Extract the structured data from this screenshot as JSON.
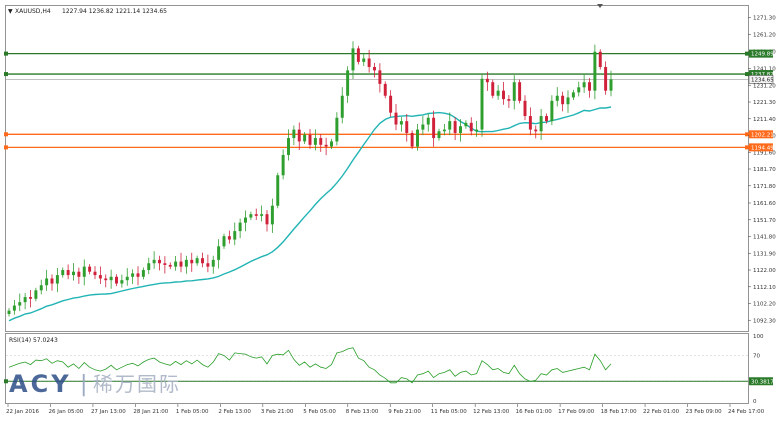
{
  "header": {
    "symbol": "XAUUSD,H4",
    "ohlc": "1227.94 1236.82 1221.14 1234.65"
  },
  "watermark": {
    "brand": "ACY",
    "separator": "|",
    "chinese": "稀万国际"
  },
  "colors": {
    "bull": "#2e9e2e",
    "bear": "#d0213b",
    "ma": "#22b4b4",
    "green_level": "#2a7a2a",
    "orange_level": "#ff6a1a",
    "rsi_line": "#2a9e2a",
    "grid": "#c8c8c8",
    "label_bg_green": "#2a7a2a",
    "label_bg_orange": "#ff6a1a",
    "current_price_bg": "#f4f4f4"
  },
  "chart_data": [
    {
      "type": "candlestick",
      "title": "",
      "y_ticks": [
        "1271.30",
        "1261.20",
        "1251.10",
        "1241.10",
        "1231.20",
        "1221.30",
        "1211.40",
        "1201.50",
        "1191.60",
        "1181.70",
        "1171.80",
        "1161.60",
        "1151.70",
        "1141.80",
        "1131.90",
        "1122.00",
        "1112.10",
        "1102.20",
        "1092.30"
      ],
      "ylim": [
        1089.5,
        1274.5
      ],
      "x_ticks": [
        "22 Jan 2016",
        "26 Jan 05:00",
        "27 Jan 13:00",
        "28 Jan 21:00",
        "1 Feb 05:00",
        "2 Feb 13:00",
        "3 Feb 21:00",
        "5 Feb 05:00",
        "8 Feb 13:00",
        "9 Feb 21:00",
        "11 Feb 05:00",
        "12 Feb 13:00",
        "16 Feb 01:00",
        "17 Feb 09:00",
        "18 Feb 17:00",
        "22 Feb 01:00",
        "23 Feb 09:00",
        "24 Feb 17:00"
      ],
      "horizontal_levels": [
        {
          "value": 1249.89,
          "label": "1249.89",
          "color": "#2a7a2a"
        },
        {
          "value": 1237.82,
          "label": "1237.82",
          "color": "#2a7a2a"
        },
        {
          "value": 1234.65,
          "label": "1234.65",
          "color": "#333333"
        },
        {
          "value": 1202.21,
          "label": "1202.21",
          "color": "#ff6a1a"
        },
        {
          "value": 1194.49,
          "label": "1194.49",
          "color": "#ff6a1a"
        }
      ],
      "closes": [
        1098,
        1101,
        1103,
        1106,
        1105,
        1110,
        1113,
        1117,
        1114,
        1119,
        1122,
        1119,
        1121,
        1118,
        1124,
        1121,
        1119,
        1117,
        1116,
        1118,
        1114,
        1116,
        1118,
        1120,
        1118,
        1122,
        1126,
        1128,
        1126,
        1125,
        1124,
        1127,
        1124,
        1128,
        1126,
        1129,
        1126,
        1124,
        1128,
        1136,
        1142,
        1140,
        1145,
        1150,
        1153,
        1155,
        1154,
        1155,
        1149,
        1160,
        1178,
        1190,
        1200,
        1205,
        1198,
        1202,
        1196,
        1200,
        1196,
        1195,
        1198,
        1212,
        1225,
        1240,
        1253,
        1245,
        1247,
        1242,
        1240,
        1232,
        1225,
        1215,
        1208,
        1210,
        1203,
        1195,
        1205,
        1208,
        1212,
        1200,
        1204,
        1205,
        1210,
        1203,
        1207,
        1209,
        1204,
        1205,
        1235,
        1233,
        1225,
        1228,
        1223,
        1222,
        1233,
        1222,
        1213,
        1205,
        1204,
        1213,
        1210,
        1222,
        1225,
        1220,
        1224,
        1227,
        1230,
        1233,
        1228,
        1251,
        1242,
        1228,
        1234.65
      ],
      "ma": {
        "period": 20,
        "label": ""
      },
      "rsi": {
        "label": "RSI(14) 57.0243",
        "ticks": [
          "100",
          "70",
          "30",
          "0"
        ],
        "ylim": [
          0,
          100
        ],
        "level": {
          "value": 30.3817,
          "label": "30.3817"
        },
        "values": [
          52,
          55,
          58,
          60,
          56,
          63,
          62,
          65,
          58,
          62,
          60,
          52,
          57,
          50,
          59,
          52,
          48,
          46,
          49,
          55,
          48,
          52,
          56,
          58,
          54,
          60,
          64,
          66,
          60,
          57,
          55,
          61,
          56,
          62,
          57,
          63,
          56,
          52,
          60,
          73,
          70,
          63,
          74,
          73,
          72,
          68,
          66,
          68,
          57,
          70,
          72,
          71,
          78,
          64,
          55,
          60,
          52,
          57,
          52,
          50,
          56,
          74,
          76,
          80,
          82,
          66,
          62,
          52,
          48,
          40,
          35,
          28,
          28,
          36,
          34,
          28,
          40,
          42,
          46,
          36,
          42,
          44,
          48,
          38,
          44,
          46,
          40,
          42,
          62,
          56,
          48,
          50,
          44,
          42,
          55,
          42,
          34,
          30,
          32,
          42,
          40,
          48,
          50,
          44,
          46,
          48,
          50,
          52,
          48,
          72,
          62,
          48,
          57.0243
        ]
      }
    }
  ]
}
